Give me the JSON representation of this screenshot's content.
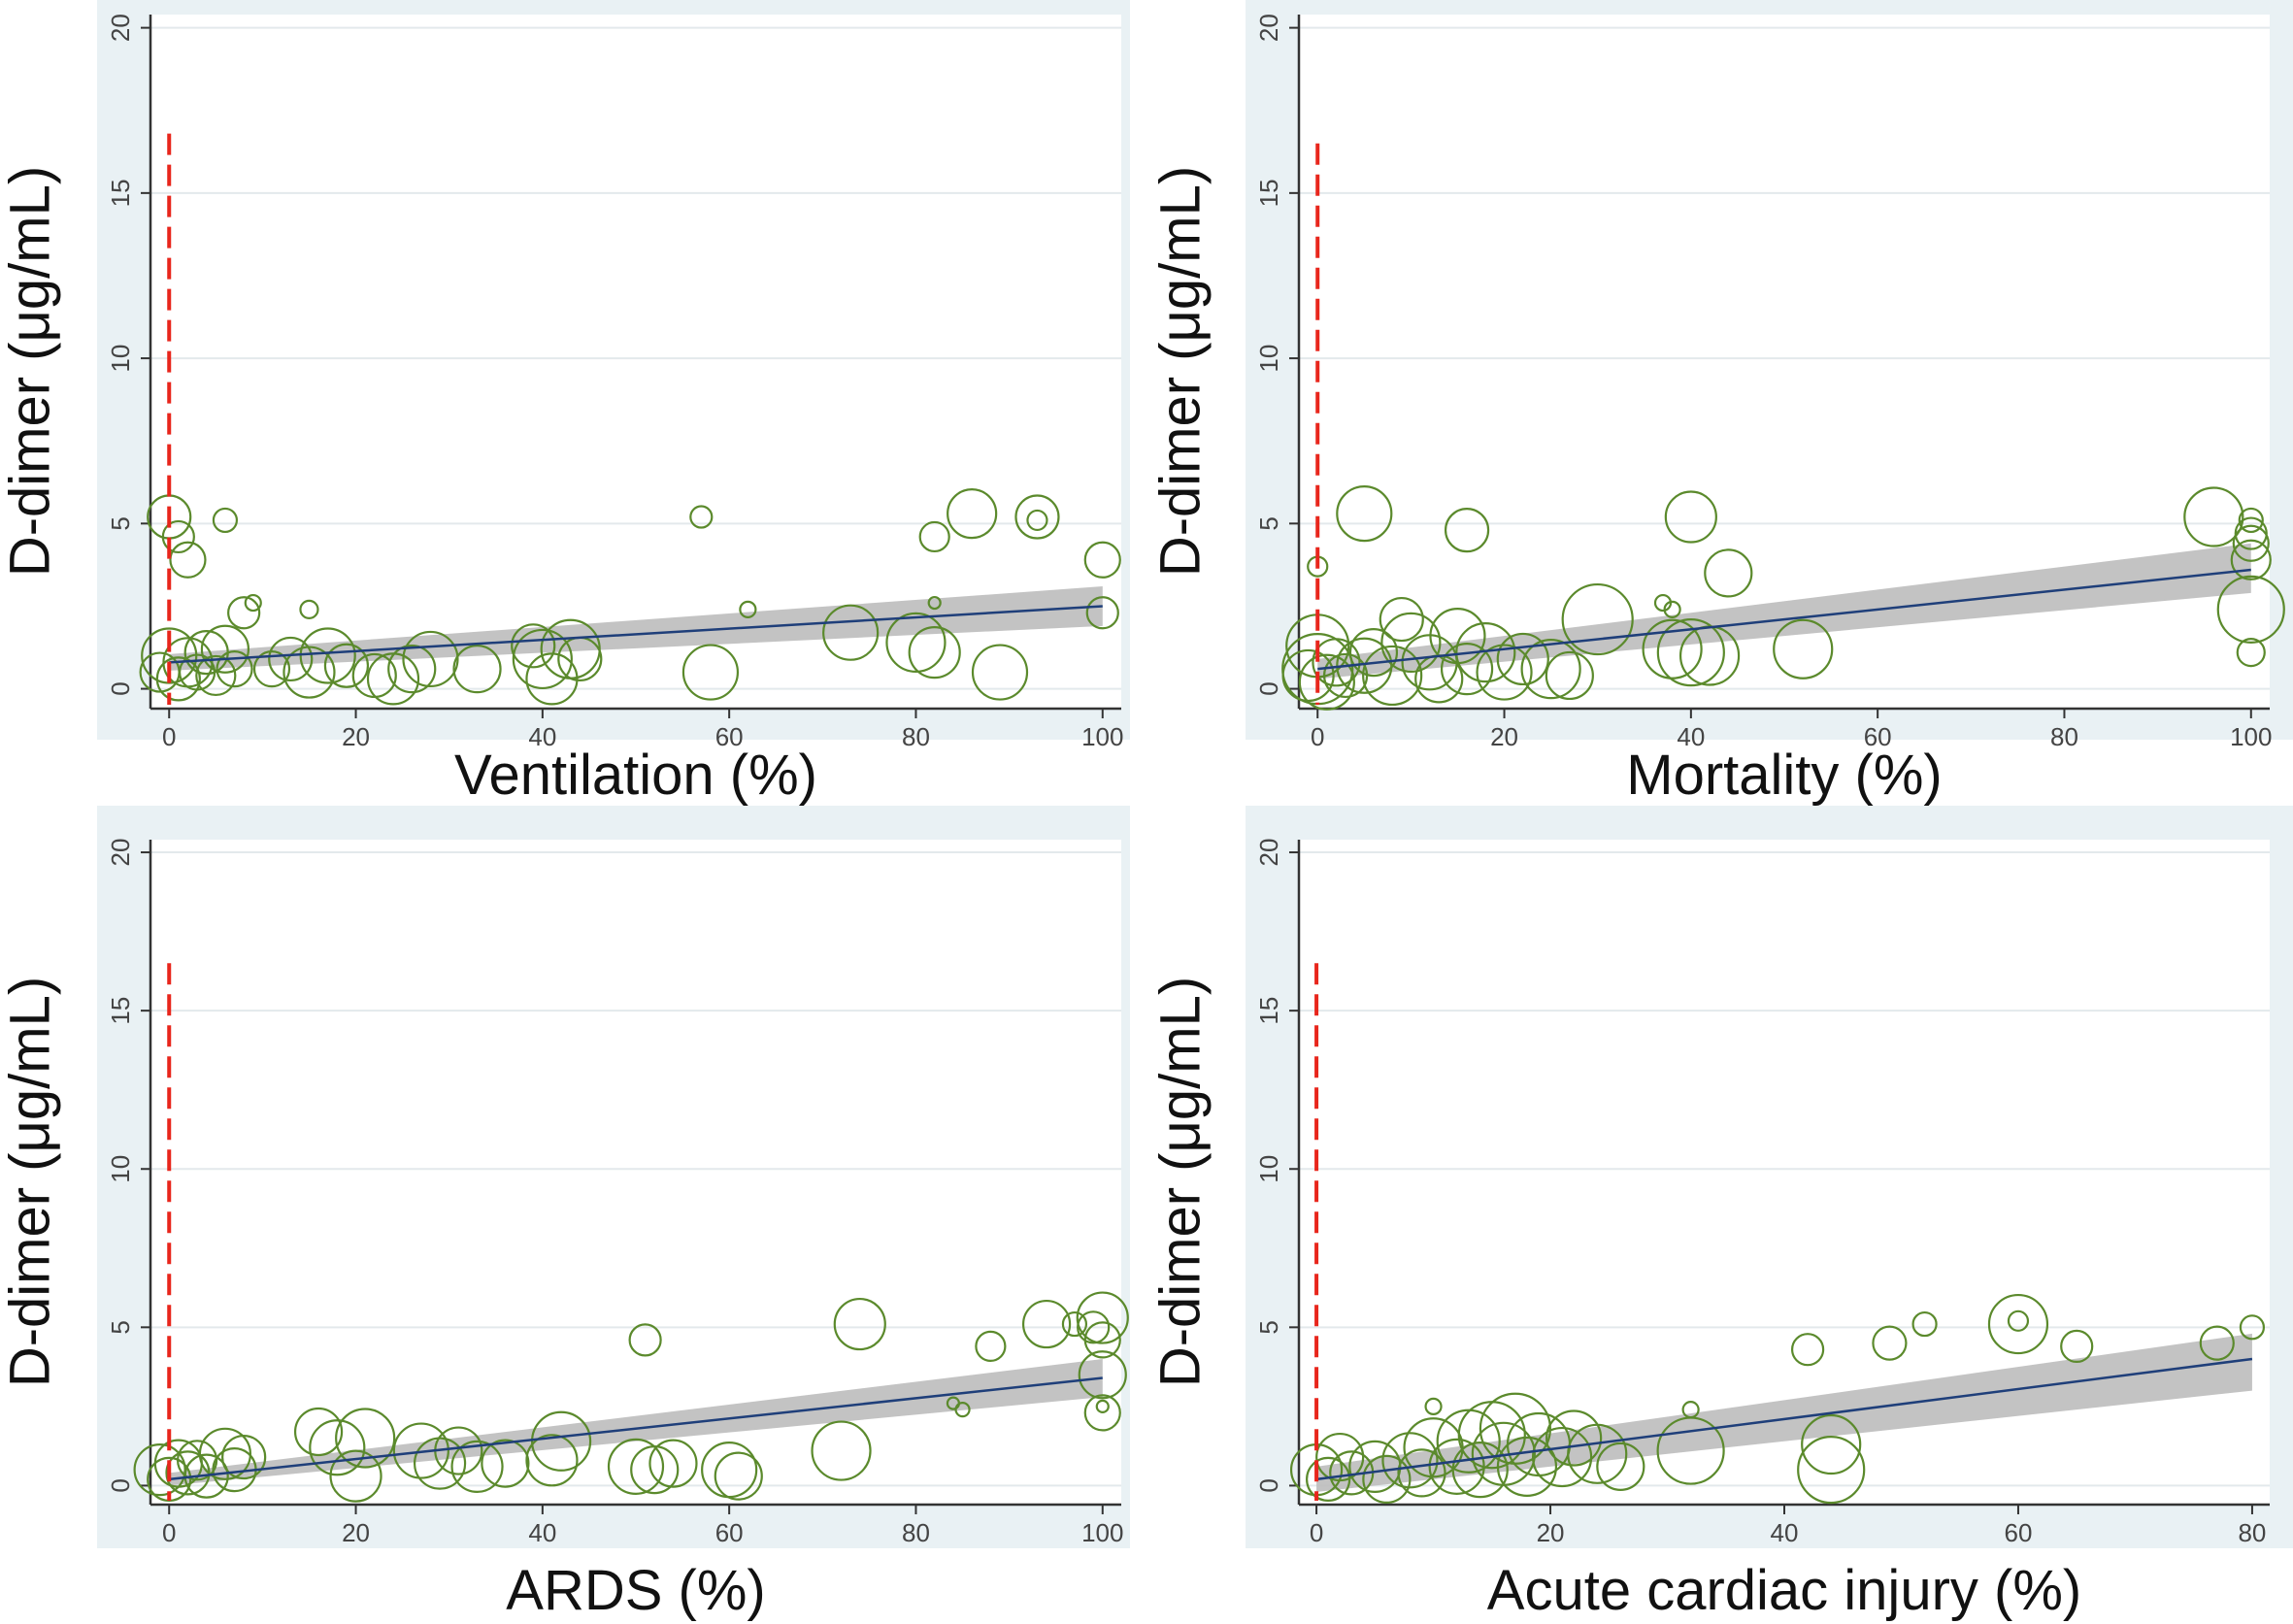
{
  "colors": {
    "panel_bg": "#e9f1f4",
    "plot_bg": "#ffffff",
    "grid": "#e3e9ec",
    "axis": "#333333",
    "bubble": "#5b8a2c",
    "fit_line": "#1f3f7a",
    "ci_band": "#bdbdbd",
    "ref_line": "#e8261c"
  },
  "chart_data": [
    {
      "type": "scatter",
      "title": "",
      "xlabel": "Ventilation (%)",
      "ylabel": "D-dimer (μg/mL)",
      "xlim": [
        -2,
        102
      ],
      "ylim": [
        -0.6,
        20.4
      ],
      "xticks": [
        "0",
        "20",
        "40",
        "60",
        "80",
        "100"
      ],
      "xtick_values": [
        0,
        20,
        40,
        60,
        80,
        100
      ],
      "yticks": [
        "0",
        "5",
        "10",
        "15",
        "20"
      ],
      "ytick_values": [
        0,
        5,
        10,
        15,
        20
      ],
      "reference_line": {
        "x": 0,
        "y_top": 16.8,
        "style": "dashed"
      },
      "fit": {
        "x": [
          0,
          100
        ],
        "y": [
          0.8,
          2.5
        ],
        "ci_lower": [
          0.55,
          1.9
        ],
        "ci_upper": [
          1.05,
          3.1
        ]
      },
      "bubbles": [
        {
          "x": 0,
          "y": 5.2,
          "r": 22
        },
        {
          "x": 1,
          "y": 4.6,
          "r": 16
        },
        {
          "x": 2,
          "y": 3.9,
          "r": 18
        },
        {
          "x": 6,
          "y": 5.1,
          "r": 12
        },
        {
          "x": 9,
          "y": 2.6,
          "r": 8
        },
        {
          "x": 8,
          "y": 2.3,
          "r": 16
        },
        {
          "x": 15,
          "y": 2.4,
          "r": 9
        },
        {
          "x": -1,
          "y": 0.5,
          "r": 20
        },
        {
          "x": 0,
          "y": 1.0,
          "r": 28
        },
        {
          "x": 1,
          "y": 0.3,
          "r": 22
        },
        {
          "x": 2,
          "y": 0.8,
          "r": 25
        },
        {
          "x": 3,
          "y": 0.5,
          "r": 18
        },
        {
          "x": 4,
          "y": 1.1,
          "r": 22
        },
        {
          "x": 5,
          "y": 0.4,
          "r": 20
        },
        {
          "x": 6,
          "y": 1.2,
          "r": 24
        },
        {
          "x": 7,
          "y": 0.6,
          "r": 18
        },
        {
          "x": 11,
          "y": 0.6,
          "r": 18
        },
        {
          "x": 13,
          "y": 0.9,
          "r": 22
        },
        {
          "x": 15,
          "y": 0.5,
          "r": 26
        },
        {
          "x": 17,
          "y": 1.0,
          "r": 28
        },
        {
          "x": 19,
          "y": 0.7,
          "r": 22
        },
        {
          "x": 22,
          "y": 0.4,
          "r": 22
        },
        {
          "x": 24,
          "y": 0.3,
          "r": 26
        },
        {
          "x": 26,
          "y": 0.6,
          "r": 24
        },
        {
          "x": 28,
          "y": 0.9,
          "r": 28
        },
        {
          "x": 33,
          "y": 0.6,
          "r": 24
        },
        {
          "x": 39,
          "y": 1.3,
          "r": 22
        },
        {
          "x": 40,
          "y": 0.9,
          "r": 30
        },
        {
          "x": 41,
          "y": 0.3,
          "r": 26
        },
        {
          "x": 43,
          "y": 1.2,
          "r": 30
        },
        {
          "x": 44,
          "y": 0.9,
          "r": 22
        },
        {
          "x": 57,
          "y": 5.2,
          "r": 11
        },
        {
          "x": 58,
          "y": 0.5,
          "r": 28
        },
        {
          "x": 62,
          "y": 2.4,
          "r": 8
        },
        {
          "x": 73,
          "y": 1.7,
          "r": 28
        },
        {
          "x": 80,
          "y": 1.4,
          "r": 30
        },
        {
          "x": 82,
          "y": 1.1,
          "r": 26
        },
        {
          "x": 82,
          "y": 2.6,
          "r": 6
        },
        {
          "x": 82,
          "y": 4.6,
          "r": 15
        },
        {
          "x": 86,
          "y": 5.3,
          "r": 25
        },
        {
          "x": 89,
          "y": 0.5,
          "r": 28
        },
        {
          "x": 93,
          "y": 5.2,
          "r": 22
        },
        {
          "x": 93,
          "y": 5.1,
          "r": 10
        },
        {
          "x": 100,
          "y": 3.9,
          "r": 18
        },
        {
          "x": 100,
          "y": 2.3,
          "r": 16
        }
      ]
    },
    {
      "type": "scatter",
      "title": "",
      "xlabel": "Mortality (%)",
      "ylabel": "D-dimer (μg/mL)",
      "xlim": [
        -2,
        102
      ],
      "ylim": [
        -0.6,
        20.4
      ],
      "xticks": [
        "0",
        "20",
        "40",
        "60",
        "80",
        "100"
      ],
      "xtick_values": [
        0,
        20,
        40,
        60,
        80,
        100
      ],
      "yticks": [
        "0",
        "5",
        "10",
        "15",
        "20"
      ],
      "ytick_values": [
        0,
        5,
        10,
        15,
        20
      ],
      "reference_line": {
        "x": 0,
        "y_top": 16.5,
        "style": "dashed"
      },
      "fit": {
        "x": [
          0,
          100
        ],
        "y": [
          0.6,
          3.6
        ],
        "ci_lower": [
          0.3,
          2.9
        ],
        "ci_upper": [
          0.9,
          4.4
        ]
      },
      "bubbles": [
        {
          "x": 0,
          "y": 3.7,
          "r": 10
        },
        {
          "x": 5,
          "y": 5.3,
          "r": 28
        },
        {
          "x": 16,
          "y": 4.8,
          "r": 22
        },
        {
          "x": 37,
          "y": 2.6,
          "r": 8
        },
        {
          "x": 38,
          "y": 2.4,
          "r": 8
        },
        {
          "x": 40,
          "y": 5.2,
          "r": 26
        },
        {
          "x": 44,
          "y": 3.5,
          "r": 24
        },
        {
          "x": -1,
          "y": 0.4,
          "r": 26
        },
        {
          "x": 0,
          "y": 1.3,
          "r": 32
        },
        {
          "x": 0,
          "y": 0.6,
          "r": 36
        },
        {
          "x": 1,
          "y": 0.2,
          "r": 28
        },
        {
          "x": 2,
          "y": 0.8,
          "r": 24
        },
        {
          "x": 3,
          "y": 0.4,
          "r": 22
        },
        {
          "x": 5,
          "y": 0.7,
          "r": 28
        },
        {
          "x": 6,
          "y": 1.1,
          "r": 24
        },
        {
          "x": 8,
          "y": 0.4,
          "r": 30
        },
        {
          "x": 9,
          "y": 2.1,
          "r": 22
        },
        {
          "x": 10,
          "y": 1.4,
          "r": 30
        },
        {
          "x": 12,
          "y": 0.8,
          "r": 28
        },
        {
          "x": 13,
          "y": 0.3,
          "r": 24
        },
        {
          "x": 15,
          "y": 1.6,
          "r": 28
        },
        {
          "x": 16,
          "y": 0.6,
          "r": 26
        },
        {
          "x": 18,
          "y": 1.1,
          "r": 30
        },
        {
          "x": 20,
          "y": 0.5,
          "r": 28
        },
        {
          "x": 22,
          "y": 0.9,
          "r": 26
        },
        {
          "x": 25,
          "y": 0.6,
          "r": 30
        },
        {
          "x": 27,
          "y": 0.4,
          "r": 24
        },
        {
          "x": 30,
          "y": 2.1,
          "r": 36
        },
        {
          "x": 38,
          "y": 1.2,
          "r": 30
        },
        {
          "x": 40,
          "y": 1.1,
          "r": 34
        },
        {
          "x": 42,
          "y": 1.0,
          "r": 30
        },
        {
          "x": 52,
          "y": 1.2,
          "r": 30
        },
        {
          "x": 96,
          "y": 5.2,
          "r": 30
        },
        {
          "x": 100,
          "y": 5.1,
          "r": 12
        },
        {
          "x": 100,
          "y": 4.7,
          "r": 16
        },
        {
          "x": 100,
          "y": 4.4,
          "r": 18
        },
        {
          "x": 100,
          "y": 3.9,
          "r": 20
        },
        {
          "x": 100,
          "y": 2.4,
          "r": 34
        },
        {
          "x": 100,
          "y": 1.1,
          "r": 14
        }
      ]
    },
    {
      "type": "scatter",
      "title": "",
      "xlabel": "ARDS (%)",
      "ylabel": "D-dimer (μg/mL)",
      "xlim": [
        -2,
        102
      ],
      "ylim": [
        -0.6,
        20.4
      ],
      "xticks": [
        "0",
        "20",
        "40",
        "60",
        "80",
        "100"
      ],
      "xtick_values": [
        0,
        20,
        40,
        60,
        80,
        100
      ],
      "yticks": [
        "0",
        "5",
        "10",
        "15",
        "20"
      ],
      "ytick_values": [
        0,
        5,
        10,
        15,
        20
      ],
      "reference_line": {
        "x": 0,
        "y_top": 16.5,
        "style": "dashed"
      },
      "fit": {
        "x": [
          0,
          100
        ],
        "y": [
          0.2,
          3.4
        ],
        "ci_lower": [
          0.0,
          2.8
        ],
        "ci_upper": [
          0.4,
          4.0
        ]
      },
      "bubbles": [
        {
          "x": -1,
          "y": 0.5,
          "r": 26
        },
        {
          "x": 0,
          "y": 0.2,
          "r": 22
        },
        {
          "x": 1,
          "y": 0.7,
          "r": 24
        },
        {
          "x": 2,
          "y": 0.4,
          "r": 22
        },
        {
          "x": 3,
          "y": 0.8,
          "r": 20
        },
        {
          "x": 4,
          "y": 0.3,
          "r": 22
        },
        {
          "x": 6,
          "y": 1.0,
          "r": 26
        },
        {
          "x": 7,
          "y": 0.5,
          "r": 22
        },
        {
          "x": 8,
          "y": 0.9,
          "r": 22
        },
        {
          "x": 16,
          "y": 1.7,
          "r": 24
        },
        {
          "x": 18,
          "y": 1.2,
          "r": 28
        },
        {
          "x": 20,
          "y": 0.3,
          "r": 26
        },
        {
          "x": 21,
          "y": 1.5,
          "r": 30
        },
        {
          "x": 27,
          "y": 1.1,
          "r": 28
        },
        {
          "x": 29,
          "y": 0.7,
          "r": 26
        },
        {
          "x": 31,
          "y": 1.1,
          "r": 24
        },
        {
          "x": 33,
          "y": 0.6,
          "r": 26
        },
        {
          "x": 36,
          "y": 0.7,
          "r": 24
        },
        {
          "x": 42,
          "y": 1.4,
          "r": 30
        },
        {
          "x": 41,
          "y": 0.8,
          "r": 26
        },
        {
          "x": 50,
          "y": 0.6,
          "r": 28
        },
        {
          "x": 52,
          "y": 0.5,
          "r": 24
        },
        {
          "x": 54,
          "y": 0.7,
          "r": 24
        },
        {
          "x": 51,
          "y": 4.6,
          "r": 16
        },
        {
          "x": 60,
          "y": 0.5,
          "r": 28
        },
        {
          "x": 61,
          "y": 0.3,
          "r": 24
        },
        {
          "x": 72,
          "y": 1.1,
          "r": 30
        },
        {
          "x": 74,
          "y": 5.1,
          "r": 26
        },
        {
          "x": 84,
          "y": 2.6,
          "r": 6
        },
        {
          "x": 85,
          "y": 2.4,
          "r": 7
        },
        {
          "x": 88,
          "y": 4.4,
          "r": 15
        },
        {
          "x": 94,
          "y": 5.1,
          "r": 24
        },
        {
          "x": 97,
          "y": 5.1,
          "r": 12
        },
        {
          "x": 99,
          "y": 5.0,
          "r": 16
        },
        {
          "x": 100,
          "y": 5.3,
          "r": 26
        },
        {
          "x": 100,
          "y": 4.6,
          "r": 18
        },
        {
          "x": 100,
          "y": 3.5,
          "r": 24
        },
        {
          "x": 100,
          "y": 2.3,
          "r": 18
        },
        {
          "x": 100,
          "y": 2.5,
          "r": 6
        }
      ]
    },
    {
      "type": "scatter",
      "title": "",
      "xlabel": "Acute cardiac injury (%)",
      "ylabel": "D-dimer (μg/mL)",
      "xlim": [
        -1.5,
        81.5
      ],
      "ylim": [
        -0.6,
        20.4
      ],
      "xticks": [
        "0",
        "20",
        "40",
        "60",
        "80"
      ],
      "xtick_values": [
        0,
        20,
        40,
        60,
        80
      ],
      "yticks": [
        "0",
        "5",
        "10",
        "15",
        "20"
      ],
      "ytick_values": [
        0,
        5,
        10,
        15,
        20
      ],
      "reference_line": {
        "x": 0,
        "y_top": 16.5,
        "style": "dashed"
      },
      "fit": {
        "x": [
          0,
          80
        ],
        "y": [
          0.2,
          4.0
        ],
        "ci_lower": [
          -0.2,
          3.0
        ],
        "ci_upper": [
          0.6,
          4.8
        ]
      },
      "bubbles": [
        {
          "x": 0,
          "y": 0.5,
          "r": 26
        },
        {
          "x": 1,
          "y": 0.2,
          "r": 22
        },
        {
          "x": 2,
          "y": 0.9,
          "r": 24
        },
        {
          "x": 3,
          "y": 0.4,
          "r": 22
        },
        {
          "x": 5,
          "y": 0.6,
          "r": 26
        },
        {
          "x": 6,
          "y": 0.2,
          "r": 24
        },
        {
          "x": 8,
          "y": 0.8,
          "r": 28
        },
        {
          "x": 9,
          "y": 0.4,
          "r": 24
        },
        {
          "x": 10,
          "y": 1.2,
          "r": 30
        },
        {
          "x": 10,
          "y": 2.5,
          "r": 8
        },
        {
          "x": 12,
          "y": 0.6,
          "r": 28
        },
        {
          "x": 13,
          "y": 1.4,
          "r": 32
        },
        {
          "x": 14,
          "y": 0.5,
          "r": 28
        },
        {
          "x": 15,
          "y": 1.6,
          "r": 34
        },
        {
          "x": 16,
          "y": 1.0,
          "r": 32
        },
        {
          "x": 17,
          "y": 1.8,
          "r": 36
        },
        {
          "x": 18,
          "y": 0.6,
          "r": 30
        },
        {
          "x": 19,
          "y": 1.3,
          "r": 32
        },
        {
          "x": 21,
          "y": 0.9,
          "r": 30
        },
        {
          "x": 22,
          "y": 1.5,
          "r": 28
        },
        {
          "x": 24,
          "y": 1.0,
          "r": 30
        },
        {
          "x": 26,
          "y": 0.6,
          "r": 24
        },
        {
          "x": 32,
          "y": 1.1,
          "r": 34
        },
        {
          "x": 32,
          "y": 2.4,
          "r": 8
        },
        {
          "x": 42,
          "y": 4.3,
          "r": 16
        },
        {
          "x": 44,
          "y": 1.3,
          "r": 30
        },
        {
          "x": 44,
          "y": 0.5,
          "r": 34
        },
        {
          "x": 49,
          "y": 4.5,
          "r": 17
        },
        {
          "x": 52,
          "y": 5.1,
          "r": 12
        },
        {
          "x": 60,
          "y": 5.1,
          "r": 30
        },
        {
          "x": 60,
          "y": 5.2,
          "r": 10
        },
        {
          "x": 65,
          "y": 4.4,
          "r": 16
        },
        {
          "x": 77,
          "y": 4.5,
          "r": 17
        },
        {
          "x": 80,
          "y": 5.0,
          "r": 12
        }
      ]
    }
  ]
}
